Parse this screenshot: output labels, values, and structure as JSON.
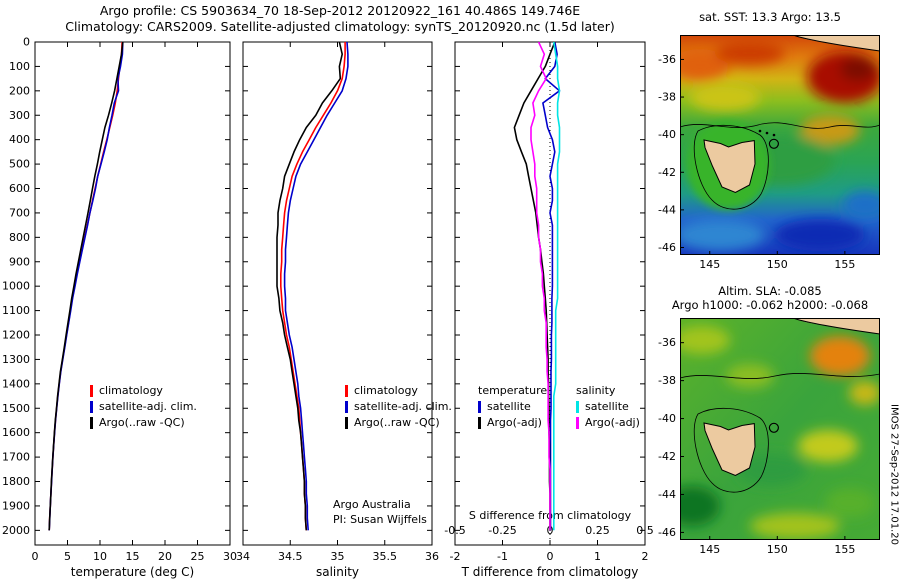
{
  "header": {
    "title_line1": "Argo profile: CS 5903634_70 18-Sep-2012 20120922_161 40.486S 149.746E",
    "title_line2": "Climatology: CARS2009. Satellite-adjusted climatology: synTS_20120920.nc (1.5d later)"
  },
  "credit": {
    "line1": "Argo Australia",
    "line2": "PI: Susan Wijffels"
  },
  "watermark": "IMOS 27-Sep-2012 17.01.20",
  "colors": {
    "climatology": "#ff0000",
    "satellite_adjusted": "#0000cc",
    "argo": "#000000",
    "salinity_satellite": "#00e5e5",
    "salinity_argo": "#ff00ff"
  },
  "depths": [
    0,
    50,
    100,
    150,
    200,
    250,
    300,
    350,
    400,
    450,
    500,
    550,
    600,
    650,
    700,
    750,
    800,
    850,
    900,
    950,
    1000,
    1050,
    1100,
    1150,
    1200,
    1250,
    1300,
    1350,
    1400,
    1450,
    1500,
    1550,
    1600,
    1650,
    1700,
    1750,
    1800,
    1850,
    1900,
    1950,
    2000
  ],
  "chart_data": [
    {
      "id": "temperature",
      "type": "line",
      "xlabel": "temperature (deg C)",
      "xlim": [
        0,
        30
      ],
      "x_ticks": [
        0,
        5,
        10,
        15,
        20,
        25,
        30
      ],
      "ylim": [
        0,
        2060
      ],
      "y_ticks": [
        0,
        100,
        200,
        300,
        400,
        500,
        600,
        700,
        800,
        900,
        1000,
        1100,
        1200,
        1300,
        1400,
        1500,
        1600,
        1700,
        1800,
        1900,
        2000
      ],
      "show_y_labels": true,
      "series": [
        {
          "name": "climatology",
          "color": "#ff0000",
          "values": [
            13.4,
            13.3,
            13.05,
            12.85,
            12.65,
            12.35,
            11.95,
            11.5,
            11.05,
            10.55,
            10.1,
            9.65,
            9.25,
            8.85,
            8.45,
            8.05,
            7.65,
            7.25,
            6.85,
            6.45,
            6.1,
            5.75,
            5.45,
            5.15,
            4.85,
            4.55,
            4.25,
            3.95,
            3.72,
            3.5,
            3.32,
            3.15,
            3.0,
            2.87,
            2.75,
            2.64,
            2.54,
            2.44,
            2.35,
            2.26,
            2.18
          ]
        },
        {
          "name": "satellite-adj. clim.",
          "color": "#0000cc",
          "values": [
            13.5,
            13.45,
            13.15,
            12.75,
            12.85,
            12.2,
            11.85,
            11.45,
            11.1,
            10.65,
            10.15,
            9.65,
            9.3,
            8.9,
            8.45,
            8.1,
            7.7,
            7.3,
            6.9,
            6.5,
            6.15,
            5.79,
            5.49,
            5.19,
            4.88,
            4.58,
            4.28,
            3.97,
            3.74,
            3.52,
            3.34,
            3.16,
            3.01,
            2.88,
            2.76,
            2.65,
            2.55,
            2.45,
            2.36,
            2.27,
            2.19
          ]
        },
        {
          "name": "Argo(..raw -QC)",
          "color": "#000000",
          "values": [
            13.5,
            13.3,
            12.95,
            12.6,
            12.25,
            11.8,
            11.3,
            10.75,
            10.35,
            9.95,
            9.6,
            9.2,
            8.85,
            8.5,
            8.15,
            7.78,
            7.41,
            7.05,
            6.68,
            6.31,
            5.98,
            5.65,
            5.37,
            5.08,
            4.79,
            4.5,
            4.21,
            3.91,
            3.69,
            3.47,
            3.3,
            3.13,
            2.98,
            2.86,
            2.74,
            2.63,
            2.53,
            2.44,
            2.35,
            2.26,
            2.18
          ]
        }
      ]
    },
    {
      "id": "salinity",
      "type": "line",
      "xlabel": "salinity",
      "xlim": [
        34,
        36
      ],
      "x_ticks": [
        34,
        34.5,
        35,
        35.5,
        36
      ],
      "ylim": [
        0,
        2060
      ],
      "y_ticks": [
        0,
        100,
        200,
        300,
        400,
        500,
        600,
        700,
        800,
        900,
        1000,
        1100,
        1200,
        1300,
        1400,
        1500,
        1600,
        1700,
        1800,
        1900,
        2000
      ],
      "show_y_labels": false,
      "series": [
        {
          "name": "climatology",
          "color": "#ff0000",
          "values": [
            35.08,
            35.08,
            35.07,
            35.05,
            35.0,
            34.93,
            34.85,
            34.77,
            34.7,
            34.63,
            34.57,
            34.52,
            34.49,
            34.46,
            34.44,
            34.43,
            34.42,
            34.41,
            34.41,
            34.4,
            34.4,
            34.41,
            34.42,
            34.44,
            34.46,
            34.49,
            34.51,
            34.53,
            34.55,
            34.57,
            34.59,
            34.6,
            34.61,
            34.62,
            34.63,
            34.64,
            34.65,
            34.65,
            34.66,
            34.66,
            34.67
          ]
        },
        {
          "name": "satellite-adj. clim.",
          "color": "#0000cc",
          "values": [
            35.1,
            35.11,
            35.11,
            35.09,
            35.05,
            34.97,
            34.89,
            34.82,
            34.75,
            34.68,
            34.61,
            34.56,
            34.53,
            34.5,
            34.48,
            34.47,
            34.46,
            34.45,
            34.45,
            34.44,
            34.44,
            34.45,
            34.45,
            34.47,
            34.49,
            34.52,
            34.54,
            34.56,
            34.58,
            34.59,
            34.61,
            34.62,
            34.63,
            34.64,
            34.65,
            34.66,
            34.67,
            34.67,
            34.68,
            34.68,
            34.69
          ]
        },
        {
          "name": "Argo(..raw -QC)",
          "color": "#000000",
          "values": [
            35.02,
            35.05,
            35.02,
            35.03,
            34.94,
            34.84,
            34.77,
            34.67,
            34.6,
            34.54,
            34.49,
            34.44,
            34.42,
            34.39,
            34.37,
            34.37,
            34.36,
            34.36,
            34.36,
            34.36,
            34.36,
            34.38,
            34.39,
            34.42,
            34.44,
            34.47,
            34.5,
            34.52,
            34.54,
            34.56,
            34.58,
            34.59,
            34.61,
            34.62,
            34.63,
            34.64,
            34.65,
            34.65,
            34.66,
            34.66,
            34.67
          ]
        }
      ]
    },
    {
      "id": "difference",
      "type": "line",
      "xlabel": "T difference from climatology",
      "xlim": [
        -2,
        2
      ],
      "x_ticks": [
        -2,
        -1,
        0,
        1,
        2
      ],
      "ylim": [
        0,
        2060
      ],
      "y_ticks": [
        0,
        100,
        200,
        300,
        400,
        500,
        600,
        700,
        800,
        900,
        1000,
        1100,
        1200,
        1300,
        1400,
        1500,
        1600,
        1700,
        1800,
        1900,
        2000
      ],
      "show_y_labels": false,
      "vline": 0,
      "inner_axis": {
        "label": "S difference from climatology",
        "lim": [
          -0.5,
          0.5
        ],
        "tick_labels": [
          "-0.5",
          "-0.25",
          "0",
          "0.25",
          "0.5"
        ]
      },
      "legend_groups": [
        "temperature",
        "salinity"
      ],
      "series": [
        {
          "name": "satellite",
          "group": "temperature",
          "axis": "T",
          "color": "#0000cc",
          "values": [
            0.1,
            0.15,
            0.1,
            -0.1,
            0.2,
            -0.15,
            -0.1,
            -0.05,
            0.05,
            0.1,
            0.05,
            0.0,
            0.05,
            0.05,
            0.0,
            0.05,
            0.05,
            0.05,
            0.05,
            0.05,
            0.05,
            0.04,
            0.04,
            0.04,
            0.03,
            0.03,
            0.03,
            0.02,
            0.02,
            0.02,
            0.02,
            0.01,
            0.01,
            0.01,
            0.01,
            0.01,
            0.01,
            0.01,
            0.01,
            0.01,
            0.01
          ]
        },
        {
          "name": "Argo(-adj)",
          "group": "temperature",
          "axis": "T",
          "color": "#000000",
          "values": [
            0.1,
            0.0,
            -0.1,
            -0.25,
            -0.4,
            -0.55,
            -0.65,
            -0.75,
            -0.7,
            -0.6,
            -0.5,
            -0.45,
            -0.4,
            -0.35,
            -0.3,
            -0.27,
            -0.24,
            -0.2,
            -0.17,
            -0.14,
            -0.12,
            -0.1,
            -0.08,
            -0.07,
            -0.06,
            -0.05,
            -0.04,
            -0.04,
            -0.03,
            -0.03,
            -0.02,
            -0.02,
            -0.02,
            -0.01,
            -0.01,
            -0.01,
            -0.01,
            0,
            0,
            0,
            0
          ]
        },
        {
          "name": "satellite",
          "group": "salinity",
          "axis": "S",
          "color": "#00e5e5",
          "values": [
            0.02,
            0.03,
            0.04,
            0.04,
            0.05,
            0.04,
            0.04,
            0.05,
            0.05,
            0.05,
            0.04,
            0.04,
            0.04,
            0.04,
            0.04,
            0.04,
            0.04,
            0.04,
            0.04,
            0.04,
            0.04,
            0.04,
            0.03,
            0.03,
            0.03,
            0.03,
            0.03,
            0.03,
            0.03,
            0.02,
            0.02,
            0.02,
            0.02,
            0.02,
            0.02,
            0.02,
            0.02,
            0.02,
            0.02,
            0.02,
            0.02
          ]
        },
        {
          "name": "Argo(-adj)",
          "group": "salinity",
          "axis": "S",
          "color": "#ff00ff",
          "values": [
            -0.06,
            -0.03,
            -0.05,
            -0.02,
            -0.06,
            -0.09,
            -0.08,
            -0.1,
            -0.1,
            -0.09,
            -0.08,
            -0.08,
            -0.07,
            -0.07,
            -0.07,
            -0.06,
            -0.06,
            -0.05,
            -0.05,
            -0.04,
            -0.04,
            -0.03,
            -0.03,
            -0.02,
            -0.02,
            -0.02,
            -0.015,
            -0.015,
            -0.01,
            -0.01,
            -0.01,
            -0.01,
            -0.005,
            -0.005,
            -0.005,
            0,
            0,
            0,
            0,
            0,
            0
          ]
        }
      ]
    },
    {
      "id": "sst",
      "type": "heatmap",
      "title": "sat. SST: 13.3 Argo: 13.5",
      "lon_range": [
        142.8,
        157.6
      ],
      "lat_range": [
        -34.7,
        -46.4
      ],
      "x_ticks": [
        145,
        150,
        155
      ],
      "y_ticks": [
        -36,
        -38,
        -40,
        -42,
        -44,
        -46
      ],
      "marker": {
        "lon": 149.746,
        "lat": -40.486
      }
    },
    {
      "id": "sla",
      "type": "heatmap",
      "title_line1": "Altim. SLA: -0.085",
      "title_line2": "Argo h1000: -0.062 h2000: -0.068",
      "lon_range": [
        142.8,
        157.6
      ],
      "lat_range": [
        -34.7,
        -46.4
      ],
      "x_ticks": [
        145,
        150,
        155
      ],
      "y_ticks": [
        -36,
        -38,
        -40,
        -42,
        -44,
        -46
      ],
      "marker": {
        "lon": 149.746,
        "lat": -40.486
      }
    }
  ]
}
